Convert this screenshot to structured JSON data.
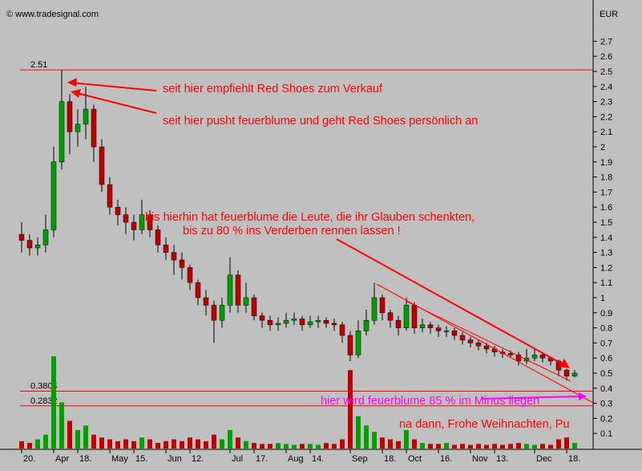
{
  "chart_data": {
    "type": "candlestick",
    "source": "© www.tradesignal.com",
    "y_unit": "EUR",
    "categories": [
      "20.",
      null,
      null,
      null,
      "Apr",
      null,
      null,
      "18.",
      null,
      null,
      null,
      "May",
      null,
      null,
      "15.",
      null,
      null,
      null,
      "Jun",
      null,
      null,
      "12.",
      null,
      null,
      null,
      null,
      "Jul",
      null,
      null,
      "17.",
      null,
      null,
      null,
      "Aug",
      null,
      null,
      "14.",
      null,
      null,
      null,
      null,
      "Sep",
      null,
      null,
      null,
      "18.",
      null,
      null,
      "Oct",
      null,
      null,
      null,
      "16.",
      null,
      null,
      null,
      "Nov",
      null,
      null,
      "13.",
      null,
      null,
      null,
      null,
      "Dec",
      null,
      null,
      null,
      "18.",
      null
    ],
    "open": [
      1.42,
      1.38,
      1.33,
      1.35,
      1.45,
      1.9,
      2.3,
      2.1,
      2.15,
      2.25,
      2.0,
      1.75,
      1.6,
      1.55,
      1.5,
      1.45,
      1.55,
      1.45,
      1.35,
      1.3,
      1.25,
      1.2,
      1.1,
      1.0,
      0.95,
      0.85,
      0.95,
      1.15,
      0.95,
      1.0,
      0.88,
      0.85,
      0.82,
      0.83,
      0.85,
      0.86,
      0.82,
      0.84,
      0.85,
      0.83,
      0.82,
      0.75,
      0.62,
      0.78,
      0.85,
      1.0,
      0.9,
      0.85,
      0.8,
      0.95,
      0.8,
      0.82,
      0.8,
      0.78,
      0.78,
      0.75,
      0.72,
      0.7,
      0.68,
      0.66,
      0.64,
      0.63,
      0.62,
      0.58,
      0.6,
      0.62,
      0.6,
      0.58,
      0.52,
      0.48
    ],
    "high": [
      1.5,
      1.42,
      1.4,
      1.55,
      2.0,
      2.51,
      2.35,
      2.25,
      2.4,
      2.28,
      2.05,
      1.8,
      1.65,
      1.6,
      1.55,
      1.65,
      1.58,
      1.48,
      1.4,
      1.35,
      1.3,
      1.22,
      1.12,
      1.05,
      0.98,
      1.0,
      1.27,
      1.18,
      1.1,
      1.02,
      0.9,
      0.88,
      0.87,
      0.9,
      0.9,
      0.88,
      0.88,
      0.88,
      0.87,
      0.86,
      0.84,
      0.78,
      0.85,
      0.92,
      1.1,
      1.02,
      0.92,
      0.88,
      1.0,
      0.97,
      0.86,
      0.84,
      0.82,
      0.81,
      0.8,
      0.77,
      0.74,
      0.72,
      0.7,
      0.68,
      0.66,
      0.65,
      0.64,
      0.66,
      0.66,
      0.63,
      0.61,
      0.59,
      0.53,
      0.52
    ],
    "low": [
      1.3,
      1.28,
      1.28,
      1.3,
      1.4,
      1.85,
      1.95,
      2.0,
      2.05,
      1.9,
      1.7,
      1.55,
      1.48,
      1.42,
      1.38,
      1.42,
      1.4,
      1.3,
      1.25,
      1.15,
      1.12,
      1.05,
      0.95,
      0.88,
      0.7,
      0.8,
      0.9,
      0.9,
      0.9,
      0.85,
      0.8,
      0.78,
      0.78,
      0.8,
      0.82,
      0.78,
      0.8,
      0.8,
      0.8,
      0.78,
      0.7,
      0.58,
      0.6,
      0.75,
      0.82,
      0.85,
      0.8,
      0.75,
      0.78,
      0.76,
      0.77,
      0.76,
      0.74,
      0.74,
      0.72,
      0.69,
      0.67,
      0.65,
      0.63,
      0.61,
      0.6,
      0.6,
      0.55,
      0.56,
      0.58,
      0.57,
      0.55,
      0.48,
      0.45,
      0.47
    ],
    "close": [
      1.38,
      1.33,
      1.35,
      1.45,
      1.9,
      2.3,
      2.1,
      2.15,
      2.25,
      2.0,
      1.75,
      1.6,
      1.55,
      1.5,
      1.45,
      1.55,
      1.45,
      1.35,
      1.3,
      1.25,
      1.2,
      1.1,
      1.0,
      0.95,
      0.85,
      0.95,
      1.15,
      0.95,
      1.0,
      0.88,
      0.85,
      0.82,
      0.83,
      0.85,
      0.86,
      0.82,
      0.84,
      0.85,
      0.83,
      0.82,
      0.75,
      0.62,
      0.78,
      0.85,
      1.0,
      0.9,
      0.85,
      0.8,
      0.95,
      0.8,
      0.82,
      0.8,
      0.78,
      0.78,
      0.75,
      0.72,
      0.7,
      0.68,
      0.66,
      0.64,
      0.63,
      0.62,
      0.58,
      0.6,
      0.62,
      0.6,
      0.58,
      0.52,
      0.48,
      0.5
    ],
    "volume": [
      0.08,
      0.06,
      0.1,
      0.15,
      1.0,
      0.5,
      0.3,
      0.2,
      0.25,
      0.15,
      0.12,
      0.1,
      0.08,
      0.1,
      0.08,
      0.12,
      0.1,
      0.06,
      0.08,
      0.1,
      0.08,
      0.12,
      0.1,
      0.08,
      0.15,
      0.1,
      0.2,
      0.12,
      0.08,
      0.06,
      0.05,
      0.05,
      0.06,
      0.05,
      0.04,
      0.05,
      0.05,
      0.04,
      0.06,
      0.05,
      0.1,
      0.85,
      0.35,
      0.25,
      0.18,
      0.12,
      0.1,
      0.08,
      0.2,
      0.1,
      0.06,
      0.05,
      0.05,
      0.06,
      0.04,
      0.05,
      0.04,
      0.05,
      0.04,
      0.05,
      0.04,
      0.05,
      0.06,
      0.05,
      0.04,
      0.05,
      0.04,
      0.1,
      0.12,
      0.06
    ],
    "up_color": "#00a000",
    "down_color": "#c00000",
    "ylim": [
      0,
      2.9
    ],
    "yticks": [
      0.1,
      0.2,
      0.3,
      0.4,
      0.5,
      0.6,
      0.7,
      0.8,
      0.9,
      1,
      1.1,
      1.2,
      1.3,
      1.4,
      1.5,
      1.6,
      1.7,
      1.8,
      1.9,
      2,
      2.1,
      2.2,
      2.3,
      2.4,
      2.5,
      2.6,
      2.7
    ],
    "y2lim": [
      0,
      1
    ],
    "hlines": [
      2.51,
      0.3804,
      0.2832
    ],
    "annotations": [
      "seit hier empfiehlt Red Shoes zum Verkauf",
      "seit hier pusht feuerblume und geht Red Shoes persönlich an",
      "bis hierhin hat feuerblume die Leute, die ihr Glauben schenkten,",
      "bis zu 80 % ins Verderben rennen lassen !",
      "hier wird feuerblume 85 % im Minus liegen",
      "na dann, Frohe Weihnachten, Pu"
    ]
  }
}
